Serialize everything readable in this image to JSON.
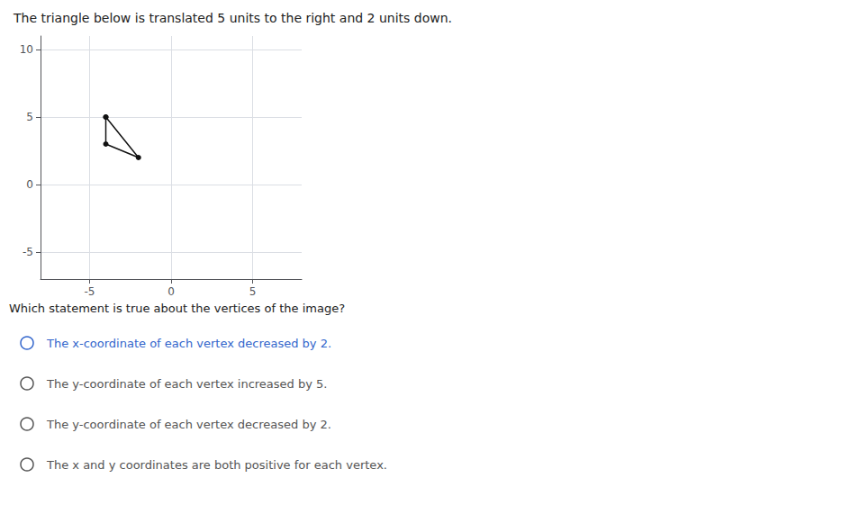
{
  "chart_data": {
    "type": "line",
    "title": "The triangle below is translated 5 units to the right and 2 units down.",
    "subtitle": "Which statement is true about the vertices of the image?",
    "annotations": [
      {
        "text": "The x-coordinate of each vertex decreased by 2.",
        "color": "#3366cc"
      },
      {
        "text": "The y-coordinate of each vertex increased by 5.",
        "color": "#555555"
      },
      {
        "text": "The y-coordinate of each vertex decreased by 2.",
        "color": "#555555"
      },
      {
        "text": "The x and y coordinates are both positive for each vertex.",
        "color": "#555555"
      }
    ],
    "x": [
      -4,
      -4,
      -2,
      -4
    ],
    "values": [
      5,
      3,
      2,
      5
    ],
    "color": "#111111",
    "marker": "o",
    "line_style": "solid",
    "xlim": [
      -8,
      8
    ],
    "ylim": [
      -7,
      11
    ],
    "xticks": [
      -5,
      0,
      5
    ],
    "yticks": [
      -5,
      0,
      5,
      10
    ],
    "grid": true
  }
}
